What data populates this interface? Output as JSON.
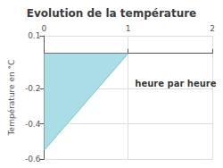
{
  "chart_data": {
    "type": "area",
    "title": "Evolution de la température",
    "ylabel": "Température en °C",
    "annotations": [
      {
        "text": "heure par heure",
        "x": 1.08,
        "y": -0.17
      }
    ],
    "xlim": [
      0,
      2
    ],
    "ylim": [
      -0.6,
      0.1
    ],
    "xticks": [
      0,
      1,
      2
    ],
    "yticks": [
      0.1,
      -0.2,
      -0.4,
      -0.6
    ],
    "grid": true,
    "series": [
      {
        "type": "area",
        "x": [
          0,
          0,
          1
        ],
        "values": [
          0,
          -0.55,
          0
        ],
        "color": "#aadde6"
      },
      {
        "type": "line",
        "x": [
          0,
          1
        ],
        "values": [
          -0.55,
          0
        ],
        "color": "#66ccdd"
      }
    ]
  }
}
